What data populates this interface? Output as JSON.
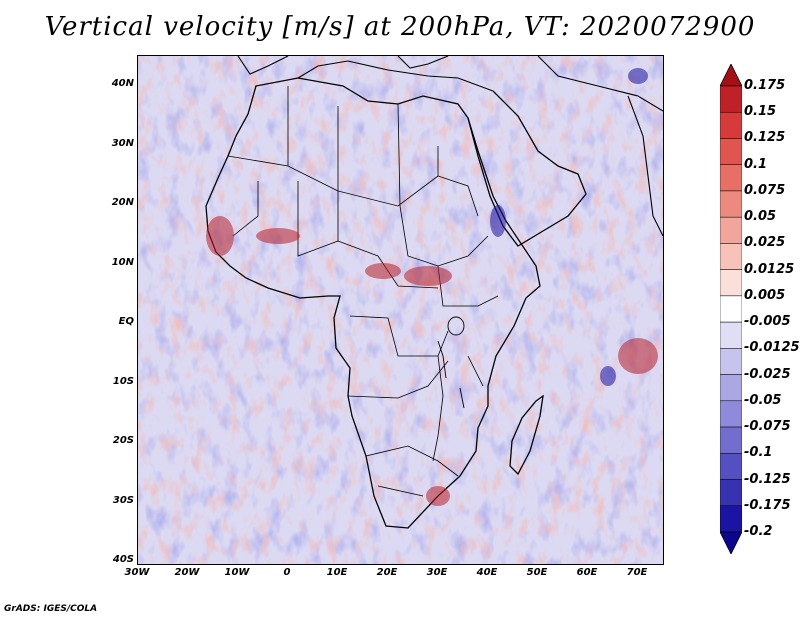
{
  "title": "Vertical velocity [m/s] at 200hPa, VT: 2020072900",
  "credit": "GrADS: IGES/COLA",
  "lat_labels": [
    "40N",
    "30N",
    "20N",
    "10N",
    "EQ",
    "10S",
    "20S",
    "30S",
    "40S"
  ],
  "lon_labels": [
    "30W",
    "20W",
    "10W",
    "0",
    "10E",
    "20E",
    "30E",
    "40E",
    "50E",
    "60E",
    "70E"
  ],
  "colorbar": {
    "levels": [
      "0.175",
      "0.15",
      "0.125",
      "0.1",
      "0.075",
      "0.05",
      "0.025",
      "0.0125",
      "0.005",
      "-0.005",
      "-0.0125",
      "-0.025",
      "-0.05",
      "-0.075",
      "-0.1",
      "-0.125",
      "-0.175",
      "-0.2"
    ],
    "colors": [
      "#a50f15",
      "#c02128",
      "#d63a3a",
      "#e0554f",
      "#e76f66",
      "#ec8a80",
      "#f1a59b",
      "#f6c2b9",
      "#fbe0da",
      "#ffffff",
      "#e0def4",
      "#c6c3ec",
      "#aba7e3",
      "#8f8ad9",
      "#726dcf",
      "#5550c2",
      "#3832b3",
      "#1a13a3",
      "#0b0590"
    ]
  }
}
